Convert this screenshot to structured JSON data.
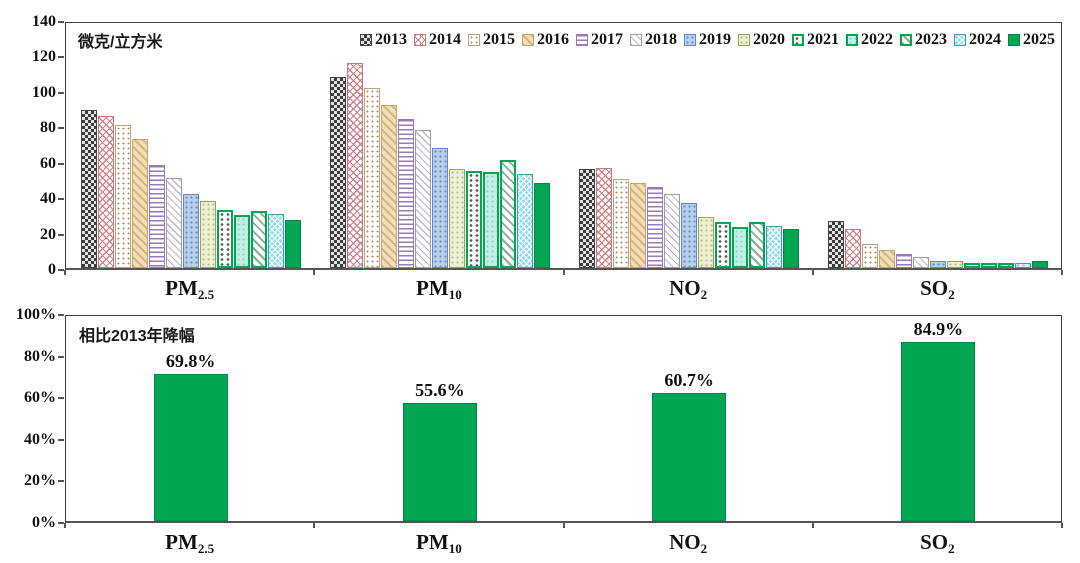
{
  "colors": {
    "primary_green": "#00a651",
    "axis": "#404040"
  },
  "chart_data": [
    {
      "type": "bar",
      "title": "微克/立方米",
      "ylabel": "微克/立方米",
      "ylim": [
        0,
        140
      ],
      "y_ticks": [
        140,
        120,
        100,
        80,
        60,
        40,
        20,
        0
      ],
      "grid": false,
      "legend_position": "top-inside",
      "categories": [
        {
          "label": "PM2.5",
          "base": "PM",
          "sub": "2.5"
        },
        {
          "label": "PM10",
          "base": "PM",
          "sub": "10"
        },
        {
          "label": "NO2",
          "base": "NO",
          "sub": "2"
        },
        {
          "label": "SO2",
          "base": "SO",
          "sub": "2"
        }
      ],
      "series": [
        {
          "name": "2013",
          "values": [
            89.5,
            108.1,
            56.0,
            26.5
          ]
        },
        {
          "name": "2014",
          "values": [
            85.9,
            115.8,
            56.7,
            21.8
          ]
        },
        {
          "name": "2015",
          "values": [
            80.6,
            101.5,
            50.0,
            13.5
          ]
        },
        {
          "name": "2016",
          "values": [
            73.0,
            92.0,
            48.0,
            10.0
          ]
        },
        {
          "name": "2017",
          "values": [
            58.0,
            84.0,
            46.0,
            8.0
          ]
        },
        {
          "name": "2018",
          "values": [
            51.0,
            78.0,
            42.0,
            6.0
          ]
        },
        {
          "name": "2019",
          "values": [
            42.0,
            68.0,
            37.0,
            4.0
          ]
        },
        {
          "name": "2020",
          "values": [
            38.0,
            56.0,
            29.0,
            4.0
          ]
        },
        {
          "name": "2021",
          "values": [
            33.0,
            55.0,
            26.0,
            3.0
          ]
        },
        {
          "name": "2022",
          "values": [
            30.0,
            54.0,
            23.0,
            3.0
          ]
        },
        {
          "name": "2023",
          "values": [
            32.0,
            61.0,
            26.0,
            3.0
          ]
        },
        {
          "name": "2024",
          "values": [
            30.5,
            53.0,
            24.0,
            3.0
          ]
        },
        {
          "name": "2025",
          "values": [
            27.0,
            48.0,
            22.0,
            4.0
          ]
        }
      ]
    },
    {
      "type": "bar",
      "title": "相比2013年降幅",
      "ylim": [
        0,
        100
      ],
      "y_ticks": [
        "100%",
        "80%",
        "60%",
        "40%",
        "20%",
        "0%"
      ],
      "grid": false,
      "bar_color": "#00a651",
      "categories": [
        {
          "label": "PM2.5",
          "base": "PM",
          "sub": "2.5"
        },
        {
          "label": "PM10",
          "base": "PM",
          "sub": "10"
        },
        {
          "label": "NO2",
          "base": "NO",
          "sub": "2"
        },
        {
          "label": "SO2",
          "base": "SO",
          "sub": "2"
        }
      ],
      "values": [
        69.8,
        55.6,
        60.7,
        84.9
      ],
      "value_labels": [
        "69.8%",
        "55.6%",
        "60.7%",
        "84.9%"
      ]
    }
  ]
}
